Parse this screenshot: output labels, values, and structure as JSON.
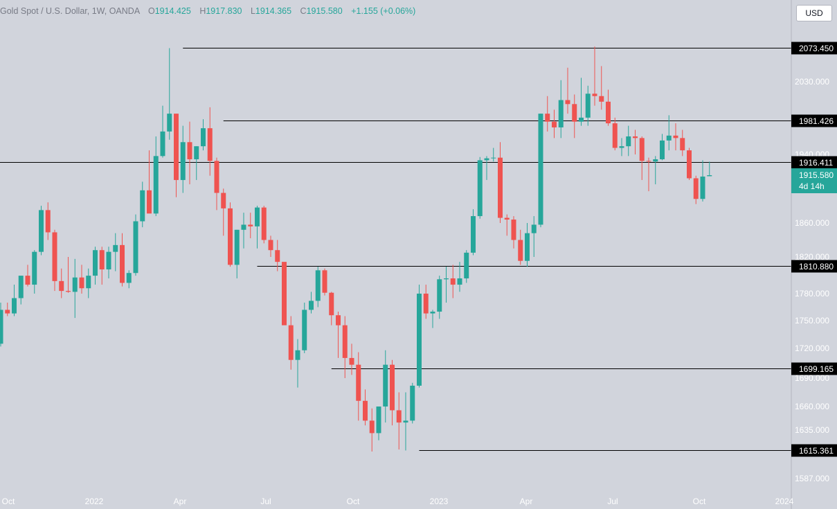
{
  "header": {
    "symbol": "Gold Spot / U.S. Dollar, 1W, OANDA",
    "open_label": "O",
    "open": "1914.425",
    "high_label": "H",
    "high": "1917.830",
    "low_label": "L",
    "low": "1914.365",
    "close_label": "C",
    "close": "1915.580",
    "change": "+1.155 (+0.06%)"
  },
  "currency_button": "USD",
  "colors": {
    "background": "#d1d4dc",
    "up": "#26a69a",
    "down": "#ef5350",
    "line": "#000000",
    "axis_text": "#ffffff",
    "level_label_bg": "#000000"
  },
  "chart_data": {
    "type": "candlestick",
    "instrument": "Gold Spot / U.S. Dollar",
    "timeframe": "1W",
    "y_ticks": [
      "2030.000",
      "1940.000",
      "1860.000",
      "1820.000",
      "1780.000",
      "1750.000",
      "1720.000",
      "1690.000",
      "1660.000",
      "1635.000",
      "1587.000"
    ],
    "x_ticks": [
      "Oct",
      "2022",
      "Apr",
      "Jul",
      "Oct",
      "2023",
      "Apr",
      "Jul",
      "Oct",
      "2024"
    ],
    "levels": [
      {
        "price": 2073.45,
        "label": "2073.450",
        "from_index": 27
      },
      {
        "price": 1981.426,
        "label": "1981.426",
        "from_index": 33
      },
      {
        "price": 1916.411,
        "label": "1916.411",
        "from_index": 0
      },
      {
        "price": 1810.88,
        "label": "1810.880",
        "from_index": 38
      },
      {
        "price": 1699.165,
        "label": "1699.165",
        "from_index": 49
      },
      {
        "price": 1615.361,
        "label": "1615.361",
        "from_index": 62
      }
    ],
    "last_price": {
      "label": "1915.580",
      "countdown": "4d 14h"
    },
    "candles": [
      {
        "o": 1725,
        "h": 1770,
        "l": 1722,
        "c": 1762
      },
      {
        "o": 1762,
        "h": 1770,
        "l": 1755,
        "c": 1758
      },
      {
        "o": 1758,
        "h": 1790,
        "l": 1755,
        "c": 1775
      },
      {
        "o": 1775,
        "h": 1800,
        "l": 1768,
        "c": 1800
      },
      {
        "o": 1800,
        "h": 1812,
        "l": 1788,
        "c": 1790
      },
      {
        "o": 1790,
        "h": 1828,
        "l": 1780,
        "c": 1826
      },
      {
        "o": 1826,
        "h": 1880,
        "l": 1822,
        "c": 1875
      },
      {
        "o": 1875,
        "h": 1884,
        "l": 1840,
        "c": 1849
      },
      {
        "o": 1849,
        "h": 1852,
        "l": 1783,
        "c": 1794
      },
      {
        "o": 1794,
        "h": 1808,
        "l": 1775,
        "c": 1783
      },
      {
        "o": 1783,
        "h": 1820,
        "l": 1781,
        "c": 1782
      },
      {
        "o": 1782,
        "h": 1818,
        "l": 1753,
        "c": 1798
      },
      {
        "o": 1798,
        "h": 1812,
        "l": 1780,
        "c": 1786
      },
      {
        "o": 1786,
        "h": 1808,
        "l": 1775,
        "c": 1800
      },
      {
        "o": 1800,
        "h": 1832,
        "l": 1790,
        "c": 1828
      },
      {
        "o": 1828,
        "h": 1832,
        "l": 1790,
        "c": 1807
      },
      {
        "o": 1807,
        "h": 1832,
        "l": 1797,
        "c": 1826
      },
      {
        "o": 1826,
        "h": 1848,
        "l": 1805,
        "c": 1834
      },
      {
        "o": 1834,
        "h": 1848,
        "l": 1788,
        "c": 1792
      },
      {
        "o": 1792,
        "h": 1806,
        "l": 1786,
        "c": 1803
      },
      {
        "o": 1803,
        "h": 1870,
        "l": 1800,
        "c": 1862
      },
      {
        "o": 1862,
        "h": 1908,
        "l": 1855,
        "c": 1898
      },
      {
        "o": 1898,
        "h": 1945,
        "l": 1874,
        "c": 1871
      },
      {
        "o": 1871,
        "h": 1962,
        "l": 1868,
        "c": 1935
      },
      {
        "o": 1935,
        "h": 2000,
        "l": 1930,
        "c": 1968
      },
      {
        "o": 1968,
        "h": 2073,
        "l": 1958,
        "c": 1990
      },
      {
        "o": 1990,
        "h": 1990,
        "l": 1890,
        "c": 1910
      },
      {
        "o": 1910,
        "h": 1975,
        "l": 1895,
        "c": 1955
      },
      {
        "o": 1955,
        "h": 1980,
        "l": 1905,
        "c": 1925
      },
      {
        "o": 1925,
        "h": 1950,
        "l": 1910,
        "c": 1950
      },
      {
        "o": 1950,
        "h": 1983,
        "l": 1945,
        "c": 1972
      },
      {
        "o": 1972,
        "h": 1998,
        "l": 1915,
        "c": 1920
      },
      {
        "o": 1920,
        "h": 1930,
        "l": 1875,
        "c": 1895
      },
      {
        "o": 1895,
        "h": 1900,
        "l": 1845,
        "c": 1877
      },
      {
        "o": 1877,
        "h": 1884,
        "l": 1810,
        "c": 1812
      },
      {
        "o": 1812,
        "h": 1852,
        "l": 1797,
        "c": 1852
      },
      {
        "o": 1852,
        "h": 1872,
        "l": 1830,
        "c": 1858
      },
      {
        "o": 1858,
        "h": 1872,
        "l": 1842,
        "c": 1856
      },
      {
        "o": 1856,
        "h": 1880,
        "l": 1830,
        "c": 1878
      },
      {
        "o": 1878,
        "h": 1880,
        "l": 1836,
        "c": 1840
      },
      {
        "o": 1840,
        "h": 1845,
        "l": 1820,
        "c": 1828
      },
      {
        "o": 1828,
        "h": 1840,
        "l": 1805,
        "c": 1815
      },
      {
        "o": 1815,
        "h": 1812,
        "l": 1748,
        "c": 1745
      },
      {
        "o": 1745,
        "h": 1755,
        "l": 1698,
        "c": 1708
      },
      {
        "o": 1708,
        "h": 1730,
        "l": 1680,
        "c": 1718
      },
      {
        "o": 1718,
        "h": 1770,
        "l": 1715,
        "c": 1762
      },
      {
        "o": 1762,
        "h": 1782,
        "l": 1758,
        "c": 1772
      },
      {
        "o": 1772,
        "h": 1810,
        "l": 1765,
        "c": 1806
      },
      {
        "o": 1806,
        "h": 1808,
        "l": 1778,
        "c": 1781
      },
      {
        "o": 1781,
        "h": 1782,
        "l": 1745,
        "c": 1756
      },
      {
        "o": 1756,
        "h": 1760,
        "l": 1710,
        "c": 1745
      },
      {
        "o": 1745,
        "h": 1755,
        "l": 1690,
        "c": 1710
      },
      {
        "o": 1710,
        "h": 1725,
        "l": 1693,
        "c": 1703
      },
      {
        "o": 1703,
        "h": 1716,
        "l": 1645,
        "c": 1666
      },
      {
        "o": 1666,
        "h": 1678,
        "l": 1640,
        "c": 1645
      },
      {
        "o": 1645,
        "h": 1658,
        "l": 1614,
        "c": 1632
      },
      {
        "o": 1632,
        "h": 1660,
        "l": 1625,
        "c": 1660
      },
      {
        "o": 1660,
        "h": 1718,
        "l": 1643,
        "c": 1703
      },
      {
        "o": 1703,
        "h": 1708,
        "l": 1640,
        "c": 1656
      },
      {
        "o": 1656,
        "h": 1675,
        "l": 1616,
        "c": 1643
      },
      {
        "o": 1643,
        "h": 1675,
        "l": 1615,
        "c": 1645
      },
      {
        "o": 1645,
        "h": 1685,
        "l": 1642,
        "c": 1682
      },
      {
        "o": 1682,
        "h": 1790,
        "l": 1680,
        "c": 1780
      },
      {
        "o": 1780,
        "h": 1790,
        "l": 1752,
        "c": 1758
      },
      {
        "o": 1758,
        "h": 1762,
        "l": 1742,
        "c": 1760
      },
      {
        "o": 1760,
        "h": 1800,
        "l": 1752,
        "c": 1796
      },
      {
        "o": 1796,
        "h": 1810,
        "l": 1770,
        "c": 1797
      },
      {
        "o": 1797,
        "h": 1812,
        "l": 1775,
        "c": 1790
      },
      {
        "o": 1790,
        "h": 1815,
        "l": 1782,
        "c": 1797
      },
      {
        "o": 1797,
        "h": 1828,
        "l": 1792,
        "c": 1825
      },
      {
        "o": 1825,
        "h": 1876,
        "l": 1822,
        "c": 1868
      },
      {
        "o": 1868,
        "h": 1932,
        "l": 1865,
        "c": 1922
      },
      {
        "o": 1922,
        "h": 1935,
        "l": 1910,
        "c": 1928
      },
      {
        "o": 1928,
        "h": 1948,
        "l": 1918,
        "c": 1930
      },
      {
        "o": 1930,
        "h": 1955,
        "l": 1860,
        "c": 1866
      },
      {
        "o": 1866,
        "h": 1870,
        "l": 1845,
        "c": 1864
      },
      {
        "o": 1864,
        "h": 1868,
        "l": 1830,
        "c": 1840
      },
      {
        "o": 1840,
        "h": 1852,
        "l": 1812,
        "c": 1816
      },
      {
        "o": 1816,
        "h": 1860,
        "l": 1810,
        "c": 1848
      },
      {
        "o": 1848,
        "h": 1868,
        "l": 1820,
        "c": 1858
      },
      {
        "o": 1858,
        "h": 1990,
        "l": 1855,
        "c": 1990
      },
      {
        "o": 1990,
        "h": 2012,
        "l": 1968,
        "c": 1980
      },
      {
        "o": 1980,
        "h": 1995,
        "l": 1960,
        "c": 1973
      },
      {
        "o": 1973,
        "h": 2032,
        "l": 1960,
        "c": 2007
      },
      {
        "o": 2007,
        "h": 2048,
        "l": 1990,
        "c": 2002
      },
      {
        "o": 2002,
        "h": 2014,
        "l": 1960,
        "c": 1980
      },
      {
        "o": 1980,
        "h": 2035,
        "l": 1975,
        "c": 1985
      },
      {
        "o": 1985,
        "h": 2025,
        "l": 1975,
        "c": 2015
      },
      {
        "o": 2015,
        "h": 2075,
        "l": 2000,
        "c": 2012
      },
      {
        "o": 2012,
        "h": 2050,
        "l": 1995,
        "c": 2005
      },
      {
        "o": 2005,
        "h": 2020,
        "l": 1975,
        "c": 1978
      },
      {
        "o": 1978,
        "h": 1985,
        "l": 1945,
        "c": 1948
      },
      {
        "o": 1948,
        "h": 1960,
        "l": 1935,
        "c": 1950
      },
      {
        "o": 1950,
        "h": 1975,
        "l": 1935,
        "c": 1962
      },
      {
        "o": 1962,
        "h": 1970,
        "l": 1940,
        "c": 1960
      },
      {
        "o": 1960,
        "h": 1962,
        "l": 1910,
        "c": 1920
      },
      {
        "o": 1920,
        "h": 1930,
        "l": 1897,
        "c": 1918
      },
      {
        "o": 1918,
        "h": 1935,
        "l": 1905,
        "c": 1925
      },
      {
        "o": 1925,
        "h": 1965,
        "l": 1922,
        "c": 1957
      },
      {
        "o": 1957,
        "h": 1988,
        "l": 1945,
        "c": 1963
      },
      {
        "o": 1963,
        "h": 1978,
        "l": 1945,
        "c": 1960
      },
      {
        "o": 1960,
        "h": 1970,
        "l": 1935,
        "c": 1945
      },
      {
        "o": 1945,
        "h": 1948,
        "l": 1910,
        "c": 1912
      },
      {
        "o": 1912,
        "h": 1915,
        "l": 1882,
        "c": 1888
      },
      {
        "o": 1888,
        "h": 1922,
        "l": 1885,
        "c": 1914
      },
      {
        "o": 1914.425,
        "h": 1917.83,
        "l": 1914.365,
        "c": 1915.58
      }
    ]
  }
}
